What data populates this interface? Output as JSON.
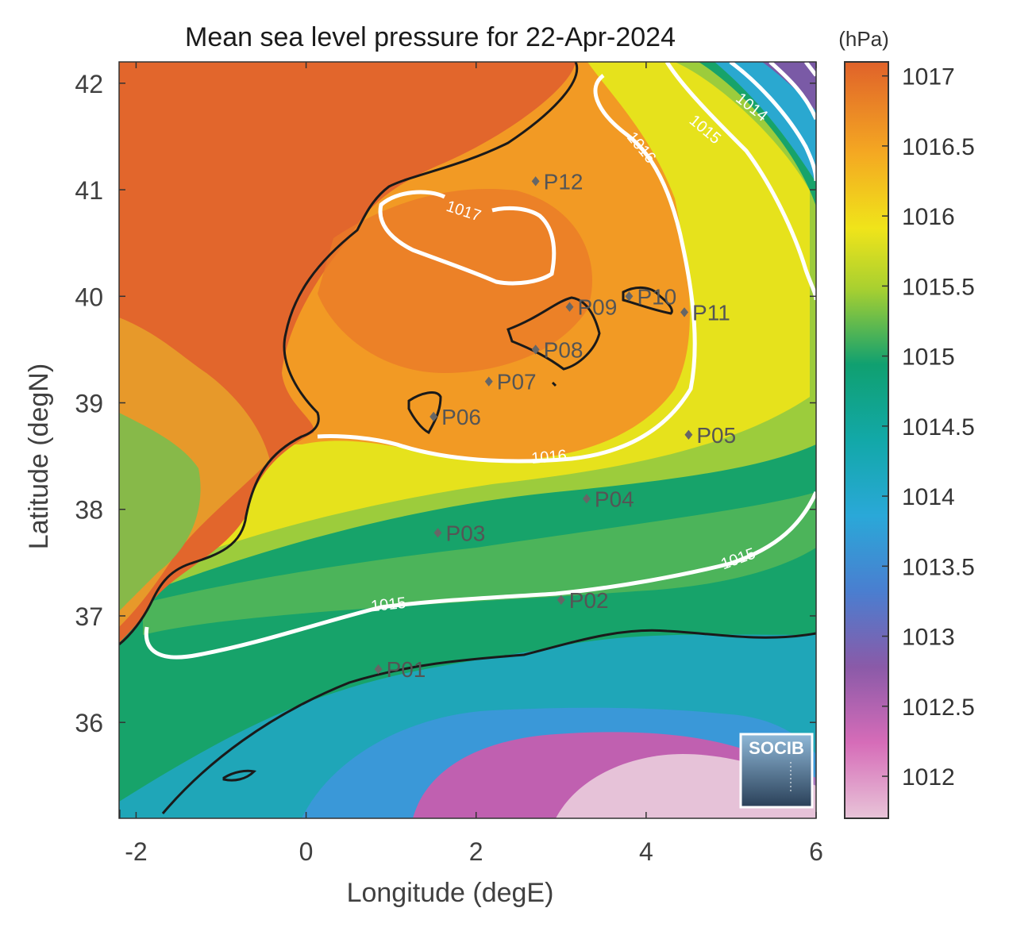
{
  "title": "Mean sea level pressure for 22-Apr-2024",
  "xlabel": "Longitude (degE)",
  "ylabel": "Latitude (degN)",
  "colorbar": {
    "unit": "(hPa)",
    "ticks": [
      "1017",
      "1016.5",
      "1016",
      "1015.5",
      "1015",
      "1014.5",
      "1014",
      "1013.5",
      "1013",
      "1012.5",
      "1012"
    ],
    "range": [
      1011.7,
      1017.1
    ],
    "colormap": [
      "#e8c4d8",
      "#d66cb8",
      "#8a5aa8",
      "#2a9ad8",
      "#1ab0c0",
      "#10a070",
      "#7cc040",
      "#e8e41a",
      "#f8c81a",
      "#f08c26",
      "#e0622a"
    ]
  },
  "x_ticks": [
    "-2",
    "0",
    "2",
    "4",
    "6"
  ],
  "y_ticks": [
    "42",
    "41",
    "40",
    "39",
    "38",
    "37",
    "36"
  ],
  "xlim": [
    -2.2,
    6
  ],
  "ylim": [
    35.1,
    42.2
  ],
  "contour_labels": [
    "1017",
    "1016",
    "1016",
    "1015",
    "1015",
    "1015",
    "1014"
  ],
  "stations": [
    {
      "name": "P01",
      "lon": 0.85,
      "lat": 36.5
    },
    {
      "name": "P02",
      "lon": 3.0,
      "lat": 37.15
    },
    {
      "name": "P03",
      "lon": 1.55,
      "lat": 37.78
    },
    {
      "name": "P04",
      "lon": 3.3,
      "lat": 38.1
    },
    {
      "name": "P05",
      "lon": 4.5,
      "lat": 38.7
    },
    {
      "name": "P06",
      "lon": 1.5,
      "lat": 38.87
    },
    {
      "name": "P07",
      "lon": 2.15,
      "lat": 39.2
    },
    {
      "name": "P08",
      "lon": 2.7,
      "lat": 39.5
    },
    {
      "name": "P09",
      "lon": 3.1,
      "lat": 39.9
    },
    {
      "name": "P10",
      "lon": 3.8,
      "lat": 40.0
    },
    {
      "name": "P11",
      "lon": 4.45,
      "lat": 39.85
    },
    {
      "name": "P12",
      "lon": 2.7,
      "lat": 41.08
    }
  ],
  "logo": "SOCIB"
}
